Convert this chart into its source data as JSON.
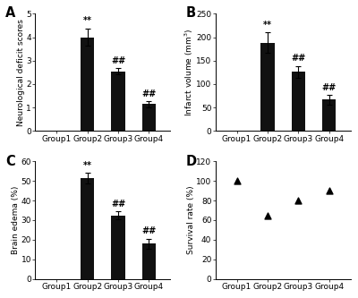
{
  "panel_A": {
    "ylabel": "Neurological deficit scores",
    "groups": [
      "Group1",
      "Group2",
      "Group3",
      "Group4"
    ],
    "values": [
      0.0,
      4.0,
      2.55,
      1.15
    ],
    "errors": [
      0.0,
      0.38,
      0.13,
      0.13
    ],
    "ylim": [
      0,
      5
    ],
    "yticks": [
      0,
      1,
      2,
      3,
      4,
      5
    ],
    "annotations": [
      "",
      "**",
      "##",
      "##"
    ]
  },
  "panel_B": {
    "ylabel": "Infarct volume (mm$^3$)",
    "groups": [
      "Group1",
      "Group2",
      "Group3",
      "Group4"
    ],
    "values": [
      0.0,
      188.0,
      126.0,
      67.0
    ],
    "errors": [
      0.0,
      22.0,
      13.0,
      10.0
    ],
    "ylim": [
      0,
      250
    ],
    "yticks": [
      0,
      50,
      100,
      150,
      200,
      250
    ],
    "annotations": [
      "",
      "**",
      "##",
      "##"
    ]
  },
  "panel_C": {
    "ylabel": "Brain edema (%)",
    "groups": [
      "Group1",
      "Group2",
      "Group3",
      "Group4"
    ],
    "values": [
      0.0,
      51.5,
      32.5,
      18.0
    ],
    "errors": [
      0.0,
      2.8,
      2.0,
      2.5
    ],
    "ylim": [
      0,
      60
    ],
    "yticks": [
      0,
      10,
      20,
      30,
      40,
      50,
      60
    ],
    "annotations": [
      "",
      "**",
      "##",
      "##"
    ]
  },
  "panel_D": {
    "ylabel": "Survival rate (%)",
    "groups": [
      "Group1",
      "Group2",
      "Group3",
      "Group4"
    ],
    "values": [
      100,
      65,
      80,
      90
    ],
    "ylim": [
      0,
      120
    ],
    "yticks": [
      0,
      20,
      40,
      60,
      80,
      100,
      120
    ]
  },
  "bar_color": "#111111",
  "bar_width": 0.45,
  "background_color": "#ffffff",
  "font_size": 6.5
}
